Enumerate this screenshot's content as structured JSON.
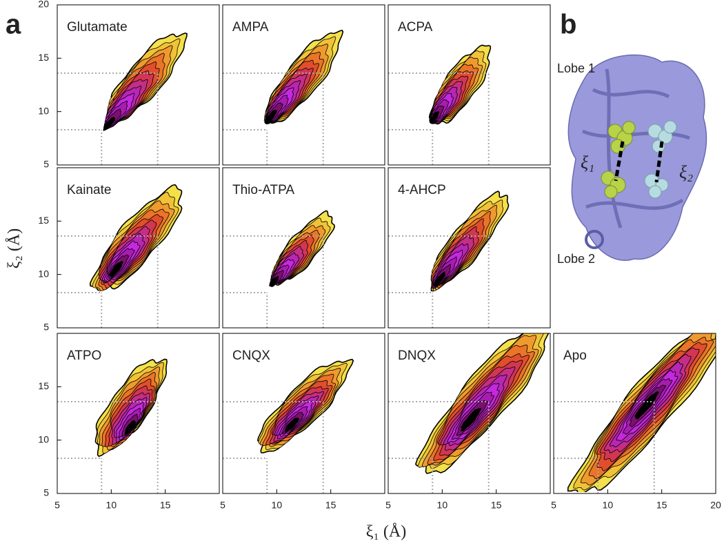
{
  "figure": {
    "panel_labels": [
      "a",
      "b"
    ],
    "xlabel": "ξ₁ (Å)",
    "ylabel": "ξ₂ (Å)",
    "reference_lines": {
      "x": [
        9.1,
        14.3
      ],
      "y": [
        8.3,
        13.6
      ]
    },
    "structure_labels": [
      "Lobe 1",
      "Lobe 2",
      "ξ₁",
      "ξ₂"
    ]
  },
  "chart_data": [
    {
      "type": "contour",
      "title": "Glutamate",
      "xlim": [
        5,
        20
      ],
      "ylim": [
        5,
        20
      ],
      "xticks": [],
      "yticks": [
        5,
        10,
        15,
        20
      ]
    },
    {
      "type": "contour",
      "title": "AMPA",
      "xlim": [
        5,
        20
      ],
      "ylim": [
        5,
        20
      ],
      "xticks": [],
      "yticks": []
    },
    {
      "type": "contour",
      "title": "ACPA",
      "xlim": [
        5,
        20
      ],
      "ylim": [
        5,
        20
      ],
      "xticks": [],
      "yticks": []
    },
    {
      "type": "contour",
      "title": "Kainate",
      "xlim": [
        5,
        20
      ],
      "ylim": [
        5,
        20
      ],
      "xticks": [],
      "yticks": [
        5,
        10,
        15
      ]
    },
    {
      "type": "contour",
      "title": "Thio-ATPA",
      "xlim": [
        5,
        20
      ],
      "ylim": [
        5,
        20
      ],
      "xticks": [],
      "yticks": []
    },
    {
      "type": "contour",
      "title": "4-AHCP",
      "xlim": [
        5,
        20
      ],
      "ylim": [
        5,
        20
      ],
      "xticks": [],
      "yticks": []
    },
    {
      "type": "contour",
      "title": "ATPO",
      "xlim": [
        5,
        20
      ],
      "ylim": [
        5,
        20
      ],
      "xticks": [
        5,
        10,
        15
      ],
      "yticks": [
        5,
        10,
        15
      ]
    },
    {
      "type": "contour",
      "title": "CNQX",
      "xlim": [
        5,
        20
      ],
      "ylim": [
        5,
        20
      ],
      "xticks": [
        5,
        10,
        15
      ],
      "yticks": []
    },
    {
      "type": "contour",
      "title": "DNQX",
      "xlim": [
        5,
        20
      ],
      "ylim": [
        5,
        20
      ],
      "xticks": [
        5,
        10,
        15
      ],
      "yticks": []
    },
    {
      "type": "contour",
      "title": "Apo",
      "xlim": [
        5,
        20
      ],
      "ylim": [
        5,
        20
      ],
      "xticks": [
        5,
        10,
        15,
        20
      ],
      "yticks": []
    }
  ]
}
